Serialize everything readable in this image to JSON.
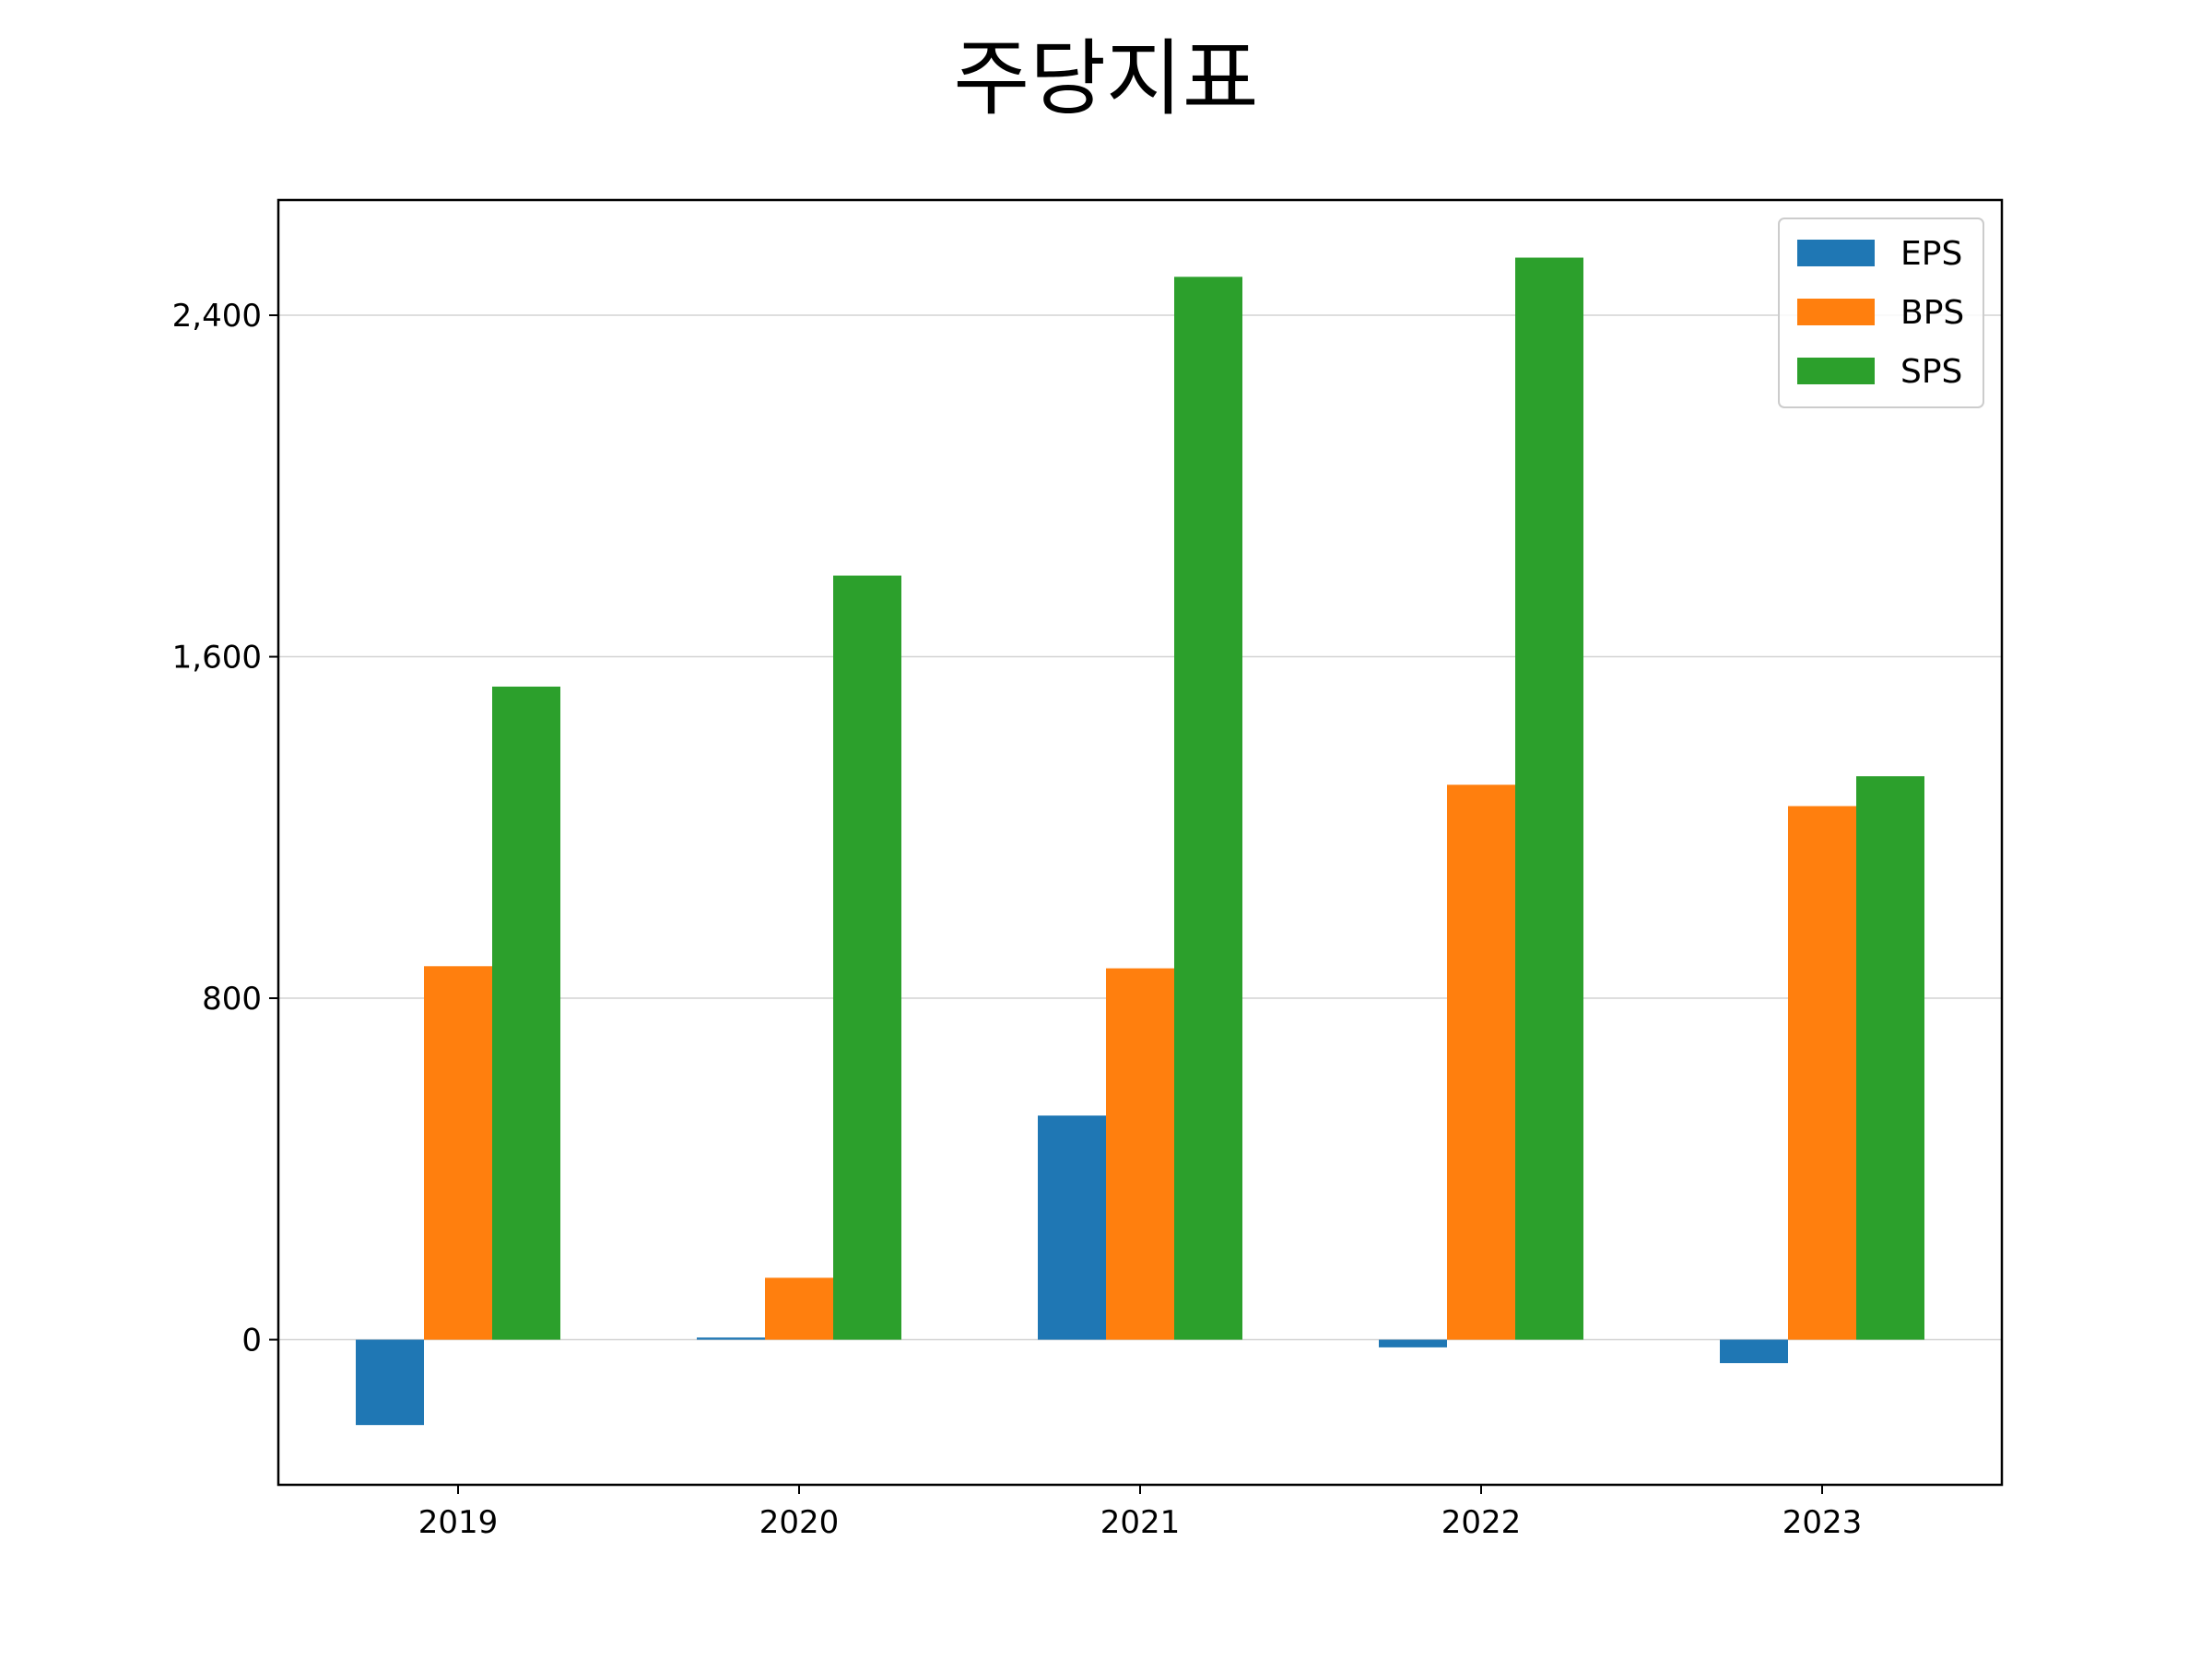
{
  "chart_data": {
    "type": "bar",
    "title": "주당지표",
    "xlabel": "",
    "ylabel": "",
    "categories": [
      "2019",
      "2020",
      "2021",
      "2022",
      "2023"
    ],
    "series": [
      {
        "name": "EPS",
        "color": "#1f77b4",
        "values": [
          -200,
          5,
          525,
          -18,
          -55
        ]
      },
      {
        "name": "BPS",
        "color": "#ff7f0e",
        "values": [
          875,
          145,
          870,
          1300,
          1250
        ]
      },
      {
        "name": "SPS",
        "color": "#2ca02c",
        "values": [
          1530,
          1790,
          2490,
          2535,
          1320
        ]
      }
    ],
    "ylim": [
      -340,
      2670
    ],
    "yticks": [
      0,
      800,
      1600,
      2400
    ],
    "ytick_labels": [
      "0",
      "800",
      "1,600",
      "2,400"
    ],
    "grid": "horizontal",
    "legend": "top-right"
  }
}
